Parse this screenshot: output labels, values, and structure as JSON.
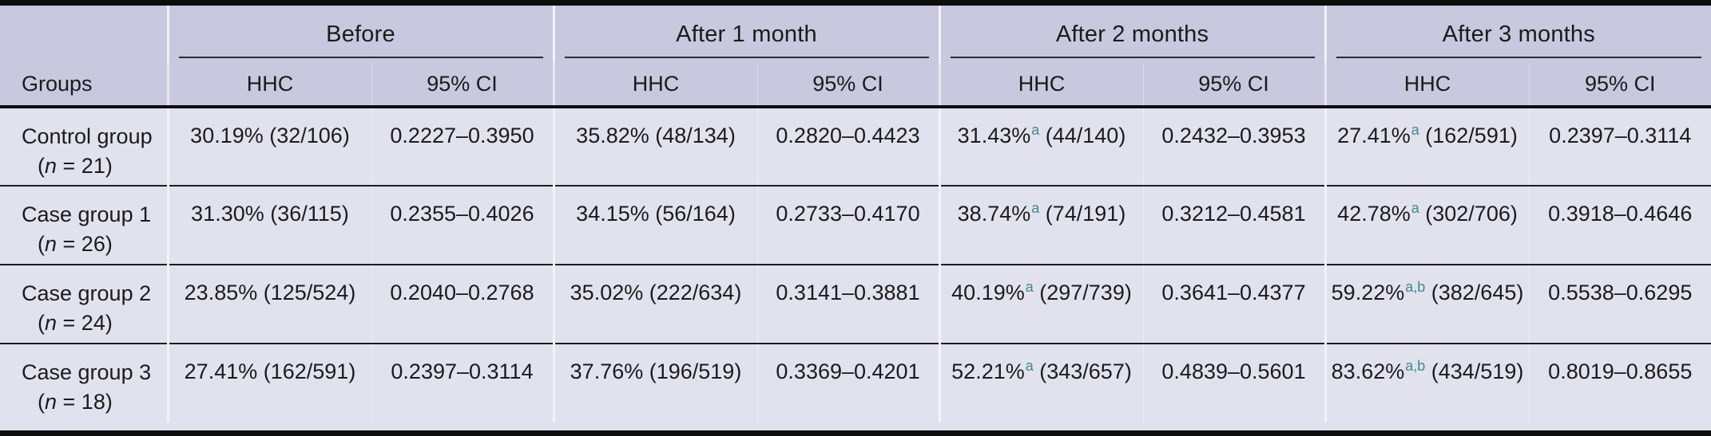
{
  "table": {
    "groups_label": "Groups",
    "sub_hhc": "HHC",
    "sub_ci": "95% CI",
    "col_groups": [
      {
        "label": "Before"
      },
      {
        "label": "After 1 month"
      },
      {
        "label": "After 2 months"
      },
      {
        "label": "After 3 months"
      }
    ],
    "rows": [
      {
        "group": "Control group",
        "n_label": "(n = 21)",
        "cells": [
          {
            "type": "hhc",
            "pct": "30.19%",
            "sup": "",
            "frac": "(32/106)"
          },
          {
            "type": "ci",
            "text": "0.2227–0.3950"
          },
          {
            "type": "hhc",
            "pct": "35.82%",
            "sup": "",
            "frac": "(48/134)"
          },
          {
            "type": "ci",
            "text": "0.2820–0.4423"
          },
          {
            "type": "hhc",
            "pct": "31.43%",
            "sup": "a",
            "frac": "(44/140)"
          },
          {
            "type": "ci",
            "text": "0.2432–0.3953"
          },
          {
            "type": "hhc",
            "pct": "27.41%",
            "sup": "a",
            "frac": "(162/591)"
          },
          {
            "type": "ci",
            "text": "0.2397–0.3114"
          }
        ]
      },
      {
        "group": "Case group 1",
        "n_label": "(n = 26)",
        "cells": [
          {
            "type": "hhc",
            "pct": "31.30%",
            "sup": "",
            "frac": "(36/115)"
          },
          {
            "type": "ci",
            "text": "0.2355–0.4026"
          },
          {
            "type": "hhc",
            "pct": "34.15%",
            "sup": "",
            "frac": "(56/164)"
          },
          {
            "type": "ci",
            "text": "0.2733–0.4170"
          },
          {
            "type": "hhc",
            "pct": "38.74%",
            "sup": "a",
            "frac": "(74/191)"
          },
          {
            "type": "ci",
            "text": "0.3212–0.4581"
          },
          {
            "type": "hhc",
            "pct": "42.78%",
            "sup": "a",
            "frac": "(302/706)"
          },
          {
            "type": "ci",
            "text": "0.3918–0.4646"
          }
        ]
      },
      {
        "group": "Case group 2",
        "n_label": "(n = 24)",
        "cells": [
          {
            "type": "hhc",
            "pct": "23.85%",
            "sup": "",
            "frac": "(125/524)"
          },
          {
            "type": "ci",
            "text": "0.2040–0.2768"
          },
          {
            "type": "hhc",
            "pct": "35.02%",
            "sup": "",
            "frac": "(222/634)"
          },
          {
            "type": "ci",
            "text": "0.3141–0.3881"
          },
          {
            "type": "hhc",
            "pct": "40.19%",
            "sup": "a",
            "frac": "(297/739)"
          },
          {
            "type": "ci",
            "text": "0.3641–0.4377"
          },
          {
            "type": "hhc",
            "pct": "59.22%",
            "sup": "a,b",
            "frac": "(382/645)"
          },
          {
            "type": "ci",
            "text": "0.5538–0.6295"
          }
        ]
      },
      {
        "group": "Case group 3",
        "n_label": "(n = 18)",
        "cells": [
          {
            "type": "hhc",
            "pct": "27.41%",
            "sup": "",
            "frac": "(162/591)"
          },
          {
            "type": "ci",
            "text": "0.2397–0.3114"
          },
          {
            "type": "hhc",
            "pct": "37.76%",
            "sup": "",
            "frac": "(196/519)"
          },
          {
            "type": "ci",
            "text": "0.3369–0.4201"
          },
          {
            "type": "hhc",
            "pct": "52.21%",
            "sup": "a",
            "frac": "(343/657)"
          },
          {
            "type": "ci",
            "text": "0.4839–0.5601"
          },
          {
            "type": "hhc",
            "pct": "83.62%",
            "sup": "a,b",
            "frac": "(434/519)"
          },
          {
            "type": "ci",
            "text": "0.8019–0.8655"
          }
        ]
      }
    ]
  },
  "colors": {
    "header-bg": "#c8c8de",
    "body-bg": "#e2e2ef",
    "rule": "#0d0d0d",
    "text": "#1b1b1b",
    "note": "#3e8a8c"
  }
}
